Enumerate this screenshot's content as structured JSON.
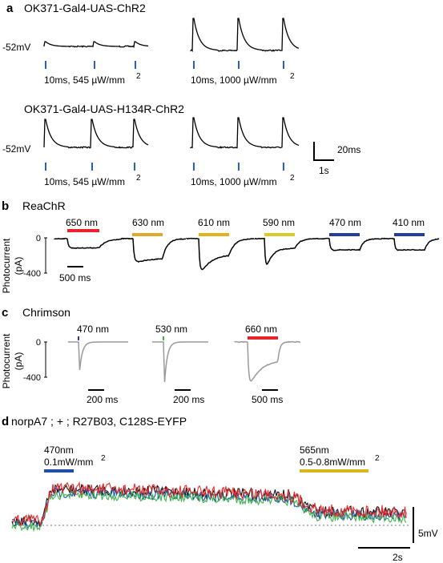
{
  "panel_a": {
    "letter": "a",
    "rows": [
      {
        "title": "OK371-Gal4-UAS-ChR2",
        "voltage": "-52mV",
        "stim_left": "10ms, 545 µW/mm",
        "stim_right": "10ms, 1000 µW/mm",
        "sup": "2"
      },
      {
        "title": "OK371-Gal4-UAS-H134R-ChR2",
        "voltage": "-52mV",
        "stim_left": "10ms, 545 µW/mm",
        "stim_right": "10ms, 1000 µW/mm",
        "sup": "2"
      }
    ],
    "scale_y": "20ms",
    "scale_x": "1s"
  },
  "panel_b": {
    "letter": "b",
    "title": "ReaChR",
    "ylabel_1": "Photocurrent",
    "ylabel_2": "(pA)",
    "yticks": [
      "0",
      "-400"
    ],
    "scale": "500 ms",
    "traces": [
      {
        "label": "650 nm",
        "color": "#e8242a"
      },
      {
        "label": "630 nm",
        "color": "#e0a826"
      },
      {
        "label": "610 nm",
        "color": "#e3b21c"
      },
      {
        "label": "590 nm",
        "color": "#d9cc2a"
      },
      {
        "label": "470 nm",
        "color": "#243e98"
      },
      {
        "label": "410 nm",
        "color": "#243e98"
      }
    ]
  },
  "panel_c": {
    "letter": "c",
    "title": "Chrimson",
    "ylabel_1": "Photocurrent",
    "ylabel_2": "(pA)",
    "yticks": [
      "0",
      "-400"
    ],
    "traces": [
      {
        "label": "470 nm",
        "color": "#243e98",
        "scale": "200 ms"
      },
      {
        "label": "530 nm",
        "color": "#3ab54a",
        "scale": "200 ms"
      },
      {
        "label": "660 nm",
        "color": "#e8242a",
        "scale": "500 ms"
      }
    ]
  },
  "panel_d": {
    "letter": "d",
    "title": "norpA7 ; + ; R27B03, C128S-EYFP",
    "stim1_line1": "470nm",
    "stim1_line2": "0.1mW/mm",
    "stim2_line1": "565nm",
    "stim2_line2": "0.5-0.8mW/mm",
    "sup": "2",
    "stim1_color": "#1f4fa5",
    "stim2_color": "#d8b61f",
    "scale_y": "5mV",
    "scale_x": "2s",
    "trace_colors": [
      "#111111",
      "#1f4fa5",
      "#3ab54a",
      "#ee2a2a"
    ]
  }
}
